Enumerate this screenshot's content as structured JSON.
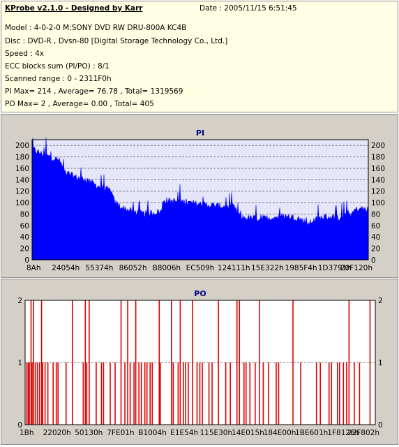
{
  "header": {
    "app_title": "KProbe v2.1.0 - Designed by Karr",
    "date": "Date : 2005/11/15 6:51:45",
    "model": "Model : 4-0-2-0 M:SONY    DVD RW DRU-800A  KC4B",
    "disc": "Disc : DVD-R , Dvsn-80 [Digital Storage Technology Co., Ltd.]",
    "speed": "Speed : 4x",
    "ecc": "ECC blocks sum (PI/PO) : 8/1",
    "scanned": "Scanned range : 0 - 2311F0h",
    "pi_stats": "PI Max= 214 , Average= 76.78 , Total= 1319569",
    "po_stats": "PO Max= 2 , Average= 0.00 , Total= 405"
  },
  "chart_data": [
    {
      "type": "area",
      "title": "PI",
      "color": "#0000ff",
      "background": "#e6e6fa",
      "grid": "dashed-horizontal",
      "ylim": [
        0,
        210
      ],
      "yticks": [
        0,
        20,
        40,
        60,
        80,
        100,
        120,
        140,
        160,
        180,
        200
      ],
      "xtick_labels": [
        "8Ah",
        "24054h",
        "55374h",
        "86052h",
        "B8006h",
        "EC509h",
        "124111h",
        "15E322h",
        "1985F4h",
        "1D3791h",
        "20F120h"
      ],
      "x_units": "sector fraction of scanned range (0-1)",
      "profile_x": [
        0,
        0.02,
        0.05,
        0.08,
        0.1,
        0.13,
        0.16,
        0.2,
        0.235,
        0.245,
        0.27,
        0.3,
        0.33,
        0.36,
        0.385,
        0.39,
        0.42,
        0.45,
        0.48,
        0.5,
        0.55,
        0.6,
        0.62,
        0.67,
        0.7,
        0.72,
        0.75,
        0.79,
        0.825,
        0.83,
        0.87,
        0.9,
        0.92,
        0.93,
        0.95,
        0.96,
        0.98,
        1.0
      ],
      "profile_y": [
        192,
        185,
        178,
        172,
        150,
        142,
        138,
        125,
        118,
        98,
        88,
        82,
        78,
        80,
        82,
        102,
        100,
        99,
        96,
        95,
        92,
        90,
        71,
        70,
        70,
        72,
        74,
        71,
        60,
        65,
        73,
        72,
        70,
        80,
        77,
        85,
        87,
        85
      ],
      "noise": 12,
      "spike_max": 214
    },
    {
      "type": "bar",
      "title": "PO",
      "color": "#e00000",
      "background": "#ffffff",
      "grid": "dashed-horizontal",
      "ylim": [
        0,
        2
      ],
      "yticks": [
        0,
        1,
        2
      ],
      "xtick_labels": [
        "1Bh",
        "22020h",
        "50130h",
        "7FE01h",
        "B1004h",
        "E1E54h",
        "115E30h",
        "14E015h",
        "184E00h",
        "1BE601h",
        "1F8126h",
        "22F802h"
      ],
      "x_units": "sector fraction of scanned range (0-1)",
      "x": [
        0.005,
        0.009,
        0.012,
        0.017,
        0.02,
        0.024,
        0.029,
        0.035,
        0.041,
        0.047,
        0.05,
        0.057,
        0.065,
        0.08,
        0.089,
        0.094,
        0.117,
        0.135,
        0.166,
        0.172,
        0.176,
        0.183,
        0.203,
        0.218,
        0.224,
        0.243,
        0.257,
        0.274,
        0.285,
        0.293,
        0.3,
        0.311,
        0.316,
        0.325,
        0.332,
        0.342,
        0.348,
        0.357,
        0.363,
        0.383,
        0.386,
        0.418,
        0.423,
        0.437,
        0.443,
        0.452,
        0.458,
        0.466,
        0.478,
        0.491,
        0.499,
        0.506,
        0.525,
        0.534,
        0.552,
        0.573,
        0.586,
        0.605,
        0.612,
        0.625,
        0.631,
        0.642,
        0.657,
        0.669,
        0.68,
        0.695,
        0.717,
        0.724,
        0.765,
        0.787,
        0.832,
        0.843,
        0.868,
        0.875,
        0.892,
        0.898,
        0.909,
        0.918,
        0.925,
        0.94,
        0.955,
        0.985
      ],
      "values": [
        1,
        1,
        1,
        2,
        1,
        2,
        1,
        1,
        1,
        2,
        1,
        1,
        1,
        1,
        1,
        1,
        1,
        2,
        1,
        2,
        1,
        2,
        1,
        1,
        1,
        1,
        1,
        2,
        1,
        2,
        1,
        1,
        2,
        1,
        1,
        1,
        1,
        1,
        1,
        2,
        1,
        2,
        1,
        1,
        2,
        1,
        1,
        1,
        2,
        1,
        1,
        1,
        1,
        1,
        2,
        1,
        1,
        2,
        2,
        1,
        1,
        1,
        1,
        2,
        1,
        1,
        1,
        1,
        2,
        1,
        1,
        1,
        1,
        1,
        1,
        1,
        1,
        1,
        2,
        1,
        1,
        2
      ]
    }
  ]
}
